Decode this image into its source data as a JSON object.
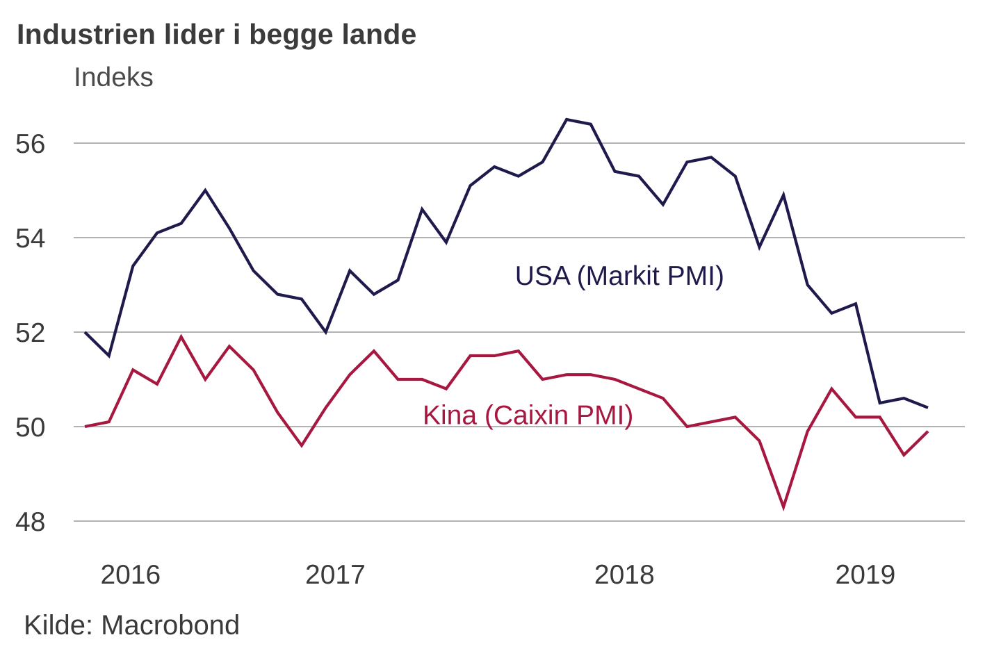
{
  "title": "Industrien lider i begge lande",
  "unit_label": "Indeks",
  "source": "Kilde: Macrobond",
  "colors": {
    "usa": "#1f1a4c",
    "kina": "#a6183f",
    "grid": "#9a9a9a",
    "text": "#3a3a3a"
  },
  "chart_data": {
    "type": "line",
    "title": "Industrien lider i begge lande",
    "ylabel": "Indeks",
    "xlabel": "",
    "ylim": [
      48,
      57
    ],
    "yticks": [
      48,
      50,
      52,
      54,
      56
    ],
    "x_years": [
      "2016",
      "2017",
      "2018",
      "2019"
    ],
    "x_year_positions": [
      1.9,
      10.4,
      22.4,
      32.4
    ],
    "x_range": [
      0,
      35
    ],
    "grid": true,
    "series": [
      {
        "name": "USA (Markit PMI)",
        "color": "#1f1a4c",
        "x": [
          0,
          1,
          2,
          3,
          4,
          5,
          6,
          7,
          8,
          9,
          10,
          11,
          12,
          13,
          14,
          15,
          16,
          17,
          18,
          19,
          20,
          21,
          22,
          23,
          24,
          25,
          26,
          27,
          28,
          29,
          30,
          31,
          32,
          33,
          34,
          35
        ],
        "values": [
          52.0,
          51.5,
          53.4,
          54.1,
          54.3,
          55.0,
          54.2,
          53.3,
          52.8,
          52.7,
          52.0,
          53.3,
          52.8,
          53.1,
          54.6,
          53.9,
          55.1,
          55.5,
          55.3,
          55.6,
          56.5,
          56.4,
          55.4,
          55.3,
          54.7,
          55.6,
          55.7,
          55.3,
          53.8,
          54.9,
          53.0,
          52.4,
          52.6,
          50.5,
          50.6,
          50.4
        ]
      },
      {
        "name": "Kina (Caixin PMI)",
        "color": "#a6183f",
        "x": [
          0,
          1,
          2,
          3,
          4,
          5,
          6,
          7,
          8,
          9,
          10,
          11,
          12,
          13,
          14,
          15,
          16,
          17,
          18,
          19,
          20,
          21,
          22,
          23,
          24,
          25,
          26,
          27,
          28,
          29,
          30,
          31,
          32,
          33,
          34,
          35
        ],
        "values": [
          50.0,
          50.1,
          51.2,
          50.9,
          51.9,
          51.0,
          51.7,
          51.2,
          50.3,
          49.6,
          50.4,
          51.1,
          51.6,
          51.0,
          51.0,
          50.8,
          51.5,
          51.5,
          51.6,
          51.0,
          51.1,
          51.1,
          51.0,
          50.8,
          50.6,
          50.0,
          50.1,
          50.2,
          49.7,
          48.3,
          49.9,
          50.8,
          50.2,
          50.2,
          49.4,
          49.9
        ]
      }
    ],
    "series_labels": [
      {
        "text": "USA (Markit PMI)",
        "x": 22.2,
        "y": 53.0,
        "series": 0
      },
      {
        "text": "Kina (Caixin PMI)",
        "x": 18.4,
        "y": 50.05,
        "series": 1
      }
    ]
  }
}
